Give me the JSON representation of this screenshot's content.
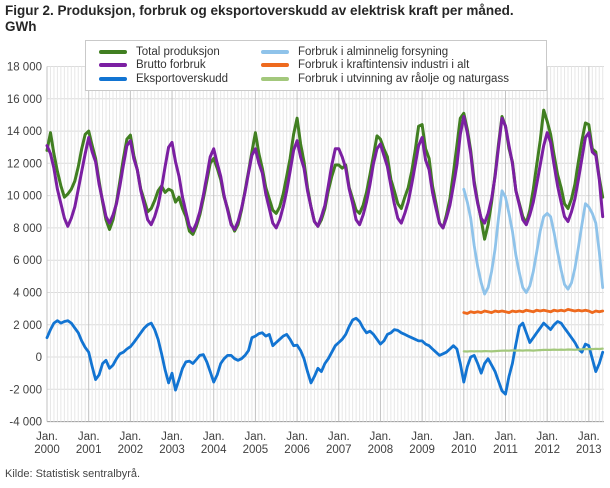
{
  "title_line1": "Figur 2. Produksjon, forbruk og eksportoverskudd av elektrisk kraft per måned.",
  "title_line2": "GWh",
  "source": "Kilde: Statistisk sentralbyrå.",
  "chart_data": {
    "type": "line",
    "title": "Figur 2. Produksjon, forbruk og eksportoverskudd av elektrisk kraft per måned. GWh",
    "unit": "GWh",
    "ylim": [
      -4000,
      18000
    ],
    "ytick_step": 2000,
    "ytick_labels": [
      "-4 000",
      "-2 000",
      "0",
      "2 000",
      "4 000",
      "6 000",
      "8 000",
      "10 000",
      "12 000",
      "14 000",
      "16 000",
      "18 000"
    ],
    "x_unit": "month",
    "x_start": "Jan. 2000",
    "x_end": "May 2013",
    "grid": {
      "horizontal": "every 2000",
      "minor_vertical": "monthly",
      "major_vertical": "each January"
    },
    "legend_position": "top",
    "xticks": [
      {
        "month": "Jan.",
        "year": "2000"
      },
      {
        "month": "Jan.",
        "year": "2001"
      },
      {
        "month": "Jan.",
        "year": "2002"
      },
      {
        "month": "Jan.",
        "year": "2003"
      },
      {
        "month": "Jan.",
        "year": "2004"
      },
      {
        "month": "Jan.",
        "year": "2005"
      },
      {
        "month": "Jan.",
        "year": "2006"
      },
      {
        "month": "Jan.",
        "year": "2007"
      },
      {
        "month": "Jan.",
        "year": "2008"
      },
      {
        "month": "Jan.",
        "year": "2009"
      },
      {
        "month": "Jan.",
        "year": "2010"
      },
      {
        "month": "Jan.",
        "year": "2011"
      },
      {
        "month": "Jan.",
        "year": "2012"
      },
      {
        "month": "Jan.",
        "year": "2013"
      }
    ],
    "series": [
      {
        "id": "total-produksjon",
        "name": "Total produksjon",
        "color": "#417f21",
        "start_index": 0,
        "values": [
          12800,
          13900,
          12600,
          11500,
          10600,
          9900,
          10100,
          10400,
          10900,
          11800,
          12900,
          13800,
          14000,
          13100,
          12300,
          10900,
          9600,
          8500,
          7900,
          8500,
          9600,
          10900,
          12300,
          13500,
          13750,
          12500,
          11600,
          10400,
          9700,
          9000,
          9200,
          9700,
          10300,
          10600,
          10200,
          10400,
          10300,
          9600,
          9900,
          9200,
          8700,
          7800,
          7600,
          8100,
          8800,
          9800,
          10900,
          12000,
          12300,
          11700,
          11000,
          9900,
          9200,
          8300,
          7800,
          8200,
          9100,
          10300,
          11500,
          12700,
          13900,
          12600,
          11700,
          10500,
          9800,
          9100,
          8900,
          9300,
          10100,
          11200,
          12300,
          13800,
          14800,
          13200,
          12100,
          10500,
          9300,
          8400,
          8100,
          8500,
          9200,
          10300,
          11200,
          11900,
          11900,
          11700,
          11900,
          10500,
          9800,
          9100,
          8900,
          9400,
          10200,
          11300,
          12500,
          13700,
          13500,
          12900,
          12400,
          11000,
          10300,
          9500,
          9200,
          9900,
          10500,
          11500,
          12800,
          14300,
          14400,
          12900,
          12300,
          10600,
          9500,
          8300,
          8000,
          8800,
          9800,
          11400,
          13100,
          14800,
          15100,
          14100,
          12800,
          10900,
          9600,
          8500,
          7300,
          8200,
          9600,
          11300,
          13200,
          14900,
          14300,
          12900,
          12100,
          10300,
          9500,
          8700,
          8300,
          9100,
          10400,
          11900,
          13400,
          15300,
          14600,
          13800,
          12500,
          11300,
          10500,
          9500,
          9200,
          9800,
          10700,
          12100,
          13400,
          14500,
          14400,
          12900,
          12700,
          11100,
          9900
        ]
      },
      {
        "id": "brutto-forbruk",
        "name": "Brutto forbruk",
        "color": "#7b1fa2",
        "start_index": 0,
        "values": [
          13100,
          12600,
          11700,
          10400,
          9500,
          8600,
          8100,
          8600,
          9300,
          10400,
          11500,
          12600,
          13600,
          12700,
          12100,
          10700,
          9700,
          8700,
          8300,
          8800,
          9500,
          10600,
          11900,
          13100,
          13400,
          12300,
          11600,
          10300,
          9400,
          8500,
          8200,
          8700,
          9400,
          10500,
          11800,
          13000,
          13300,
          12100,
          11200,
          9900,
          9000,
          8100,
          7800,
          8300,
          9000,
          10000,
          11200,
          12400,
          12900,
          12000,
          11200,
          10000,
          9100,
          8200,
          7900,
          8400,
          9200,
          10200,
          11400,
          12500,
          12900,
          12000,
          11400,
          10100,
          9200,
          8300,
          8000,
          8500,
          9300,
          10300,
          11500,
          12800,
          13400,
          12400,
          11700,
          10300,
          9300,
          8400,
          8100,
          8700,
          9400,
          10600,
          11900,
          12900,
          12900,
          12400,
          11700,
          10400,
          9500,
          8500,
          8200,
          8800,
          9600,
          10700,
          12000,
          12900,
          13200,
          12500,
          11800,
          10600,
          9500,
          8600,
          8300,
          8900,
          9600,
          10700,
          11900,
          13100,
          13600,
          12200,
          11600,
          10200,
          9200,
          8300,
          8000,
          8600,
          9400,
          10600,
          11900,
          13800,
          14900,
          13900,
          12600,
          10700,
          9500,
          8600,
          8300,
          8900,
          9800,
          11200,
          13000,
          14800,
          14300,
          13100,
          12000,
          10300,
          9400,
          8500,
          8200,
          8800,
          9600,
          10700,
          11900,
          13100,
          13900,
          13300,
          11900,
          10600,
          9600,
          8700,
          8400,
          9000,
          9800,
          11000,
          12300,
          13600,
          13900,
          12700,
          12500,
          11000,
          8700
        ]
      },
      {
        "id": "eksportoverskudd",
        "name": "Eksportoverskudd",
        "color": "#1274d2",
        "start_index": 0,
        "values": [
          1200,
          1700,
          2100,
          2250,
          2100,
          2200,
          2250,
          2100,
          1800,
          1500,
          1000,
          600,
          300,
          -600,
          -1400,
          -1100,
          -400,
          -200,
          -700,
          -500,
          -100,
          200,
          300,
          500,
          640,
          900,
          1200,
          1500,
          1800,
          2000,
          2100,
          1700,
          1100,
          200,
          -800,
          -1600,
          -1000,
          -2050,
          -1400,
          -700,
          -300,
          -250,
          -400,
          -150,
          100,
          150,
          -300,
          -900,
          -1550,
          -1100,
          -400,
          -100,
          100,
          100,
          -100,
          -200,
          -100,
          100,
          400,
          1200,
          1300,
          1450,
          1500,
          1300,
          1400,
          700,
          900,
          1100,
          1300,
          1400,
          1100,
          700,
          740,
          400,
          -100,
          -900,
          -1600,
          -1200,
          -700,
          -900,
          -400,
          -100,
          300,
          700,
          900,
          1100,
          1400,
          1900,
          2300,
          2400,
          2200,
          1800,
          1500,
          1600,
          1400,
          1100,
          800,
          1000,
          1400,
          1500,
          1700,
          1650,
          1500,
          1400,
          1300,
          1200,
          1100,
          1000,
          1000,
          800,
          700,
          500,
          300,
          100,
          200,
          300,
          500,
          700,
          500,
          -400,
          -1550,
          -600,
          0,
          100,
          -400,
          -1000,
          -400,
          -100,
          -500,
          -900,
          -1500,
          -2100,
          -2300,
          -1200,
          -400,
          800,
          1900,
          2100,
          1500,
          900,
          1200,
          1500,
          1800,
          2100,
          1900,
          1700,
          2000,
          2200,
          2100,
          1800,
          1500,
          1200,
          900,
          500,
          300,
          800,
          700,
          -100,
          -900,
          -400,
          300
        ]
      },
      {
        "id": "forbruk-alminnelig-forsyning",
        "name": "Forbruk i alminnelig forsyning",
        "color": "#8fc3ea",
        "start_index": 120,
        "values": [
          10400,
          9600,
          8600,
          6900,
          5600,
          4600,
          3900,
          4300,
          5300,
          6700,
          8600,
          10300,
          9900,
          8900,
          7800,
          6300,
          5200,
          4300,
          4000,
          4400,
          5300,
          6500,
          7800,
          8700,
          8900,
          8700,
          7700,
          6500,
          5400,
          4500,
          4200,
          4600,
          5500,
          6800,
          8200,
          9500,
          9300,
          8900,
          8300,
          6500,
          4300
        ]
      },
      {
        "id": "forbruk-kraftintensiv-industri",
        "name": "Forbruk i kraftintensiv industri i alt",
        "color": "#ee6a1e",
        "start_index": 120,
        "values": [
          2750,
          2700,
          2800,
          2750,
          2800,
          2750,
          2850,
          2800,
          2750,
          2850,
          2800,
          2850,
          2800,
          2750,
          2850,
          2800,
          2850,
          2800,
          2900,
          2850,
          2800,
          2900,
          2850,
          2900,
          2850,
          2800,
          2900,
          2850,
          2900,
          2850,
          2950,
          2900,
          2850,
          2900,
          2850,
          2900,
          2850,
          2750,
          2850,
          2800,
          2850
        ]
      },
      {
        "id": "forbruk-utvinning-raolje-naturgass",
        "name": "Forbruk i utvinning av råolje og naturgass",
        "color": "#a3c87c",
        "start_index": 120,
        "values": [
          350,
          340,
          360,
          350,
          360,
          350,
          370,
          360,
          350,
          370,
          380,
          390,
          400,
          390,
          410,
          400,
          410,
          400,
          420,
          410,
          400,
          420,
          430,
          440,
          450,
          440,
          460,
          450,
          460,
          450,
          470,
          460,
          450,
          470,
          480,
          490,
          500,
          490,
          510,
          500,
          520
        ]
      }
    ]
  }
}
